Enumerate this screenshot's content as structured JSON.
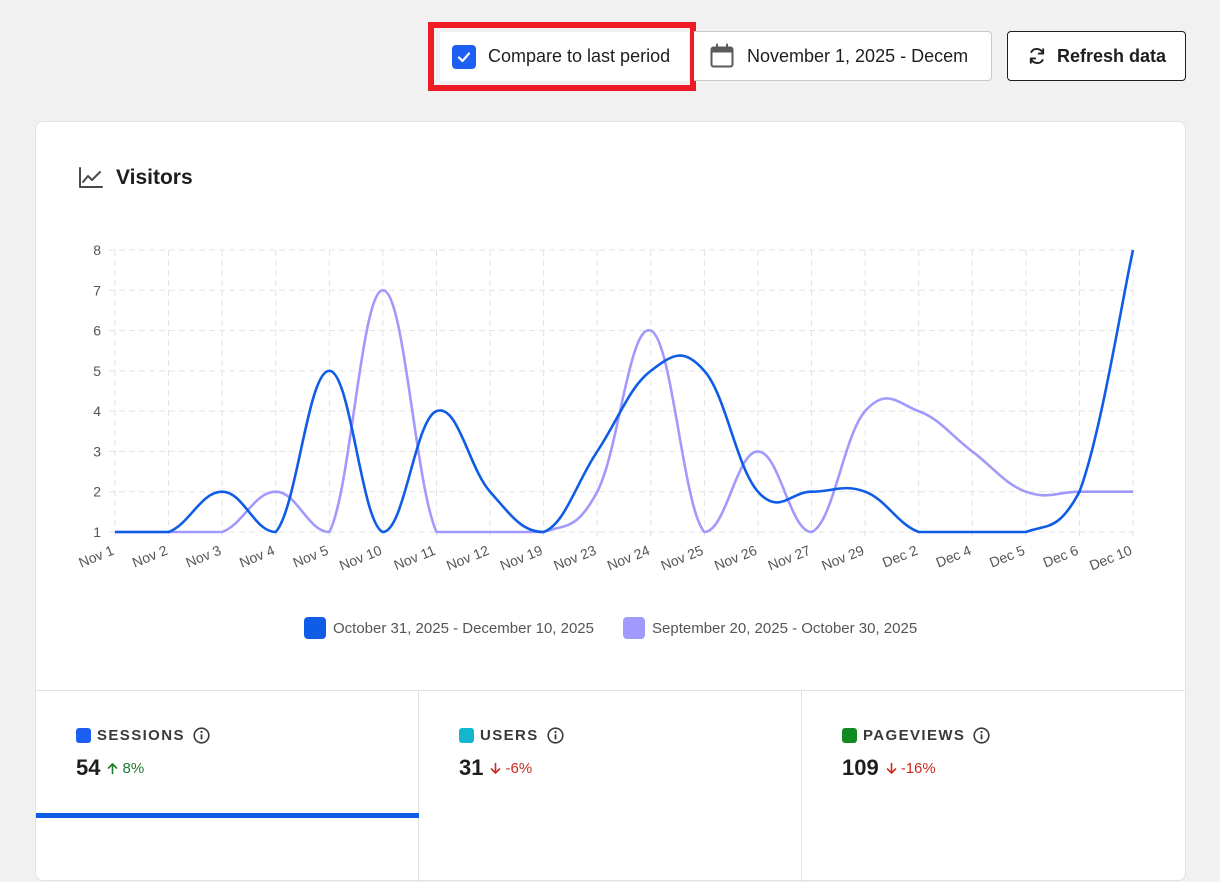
{
  "toolbar": {
    "compare_label": "Compare to last period",
    "compare_checked": true,
    "date_range_label": "November 1, 2025 - Decem",
    "refresh_label": "Refresh data"
  },
  "icons": {
    "check": "check-icon",
    "calendar": "calendar-icon",
    "refresh": "refresh-icon",
    "chart": "line-chart-icon",
    "info": "info-icon"
  },
  "colors": {
    "current": "#0f5ce6",
    "previous": "#a19afc",
    "sessions": "#1d5ff2",
    "users": "#12b7cf",
    "pageviews": "#118a22",
    "highlight": "#ee1b24"
  },
  "card": {
    "title": "Visitors"
  },
  "chart_data": {
    "type": "line",
    "title": "Visitors",
    "categories": [
      "Nov 1",
      "Nov 2",
      "Nov 3",
      "Nov 4",
      "Nov 5",
      "Nov 10",
      "Nov 11",
      "Nov 12",
      "Nov 19",
      "Nov 23",
      "Nov 24",
      "Nov 25",
      "Nov 26",
      "Nov 27",
      "Nov 29",
      "Dec 2",
      "Dec 4",
      "Dec 5",
      "Dec 6",
      "Dec 10"
    ],
    "ylim": [
      1,
      8
    ],
    "yticks": [
      1,
      2,
      3,
      4,
      5,
      6,
      7,
      8
    ],
    "grid": true,
    "legend_position": "bottom",
    "series": [
      {
        "name": "October 31, 2025 - December 10, 2025",
        "values": [
          1,
          1,
          2,
          1,
          5,
          1,
          4,
          2,
          1,
          3,
          5,
          5,
          2,
          2,
          2,
          1,
          1,
          1,
          2,
          8
        ]
      },
      {
        "name": "September 20, 2025 - October 30, 2025",
        "values": [
          1,
          1,
          1,
          2,
          1,
          7,
          1,
          1,
          1,
          2,
          6,
          1,
          3,
          1,
          4,
          4,
          3,
          2,
          2,
          2
        ]
      }
    ]
  },
  "metrics": [
    {
      "name": "SESSIONS",
      "value": "54",
      "delta": "8%",
      "direction": "up",
      "active": true
    },
    {
      "name": "USERS",
      "value": "31",
      "delta": "-6%",
      "direction": "down",
      "active": false
    },
    {
      "name": "PAGEVIEWS",
      "value": "109",
      "delta": "-16%",
      "direction": "down",
      "active": false
    }
  ]
}
